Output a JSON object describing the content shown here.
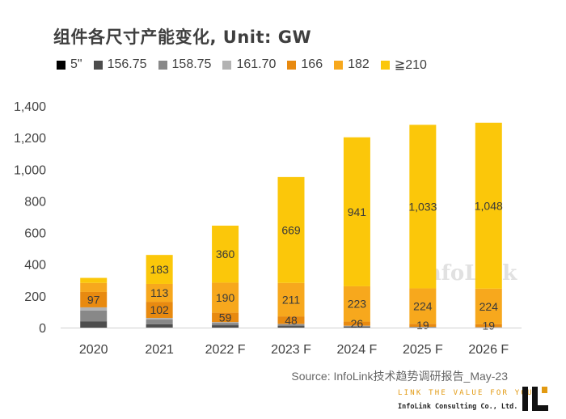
{
  "header": {
    "title": "组件各尺寸产能变化, Unit: GW"
  },
  "chart_data": {
    "type": "bar",
    "stacked": true,
    "categories": [
      "2020",
      "2021",
      "2022 F",
      "2023 F",
      "2024 F",
      "2025 F",
      "2026 F"
    ],
    "series": [
      {
        "name": "5\"",
        "color": "#000000",
        "values": [
          2,
          1,
          0,
          0,
          0,
          0,
          0
        ]
      },
      {
        "name": "156.75",
        "color": "#4d4d4d",
        "values": [
          38,
          20,
          15,
          10,
          5,
          2,
          1
        ]
      },
      {
        "name": "158.75",
        "color": "#888888",
        "values": [
          68,
          30,
          15,
          10,
          5,
          2,
          1
        ]
      },
      {
        "name": "161.70",
        "color": "#b3b3b3",
        "values": [
          20,
          10,
          5,
          3,
          2,
          1,
          1
        ]
      },
      {
        "name": "166",
        "color": "#e88a10",
        "values": [
          97,
          102,
          59,
          48,
          26,
          19,
          19
        ]
      },
      {
        "name": "182",
        "color": "#f7a81d",
        "values": [
          57,
          113,
          190,
          211,
          223,
          224,
          224
        ]
      },
      {
        "name": "≧210",
        "color": "#fbc70a",
        "values": [
          32,
          183,
          360,
          669,
          941,
          1033,
          1048
        ]
      }
    ],
    "data_labels": [
      {
        "series": "166",
        "labels": [
          "97",
          "102",
          "59",
          "48",
          "26",
          "19",
          "19"
        ]
      },
      {
        "series": "182",
        "labels": [
          "",
          "113",
          "190",
          "211",
          "223",
          "224",
          "224"
        ]
      },
      {
        "series": "≧210",
        "labels": [
          "",
          "183",
          "360",
          "669",
          "941",
          "1,033",
          "1,048"
        ]
      }
    ],
    "y_ticks": [
      "0",
      "200",
      "400",
      "600",
      "800",
      "1,000",
      "1,200",
      "1,400"
    ],
    "ylim": [
      0,
      1400
    ],
    "grid": false,
    "legend_position": "top-left",
    "watermark": "InfoLink"
  },
  "footer": {
    "source": "Source: InfoLink技术趋势调研报告_May-23",
    "tagline": "LINK THE VALUE FOR YOU",
    "company": "InfoLink Consulting Co., Ltd."
  }
}
